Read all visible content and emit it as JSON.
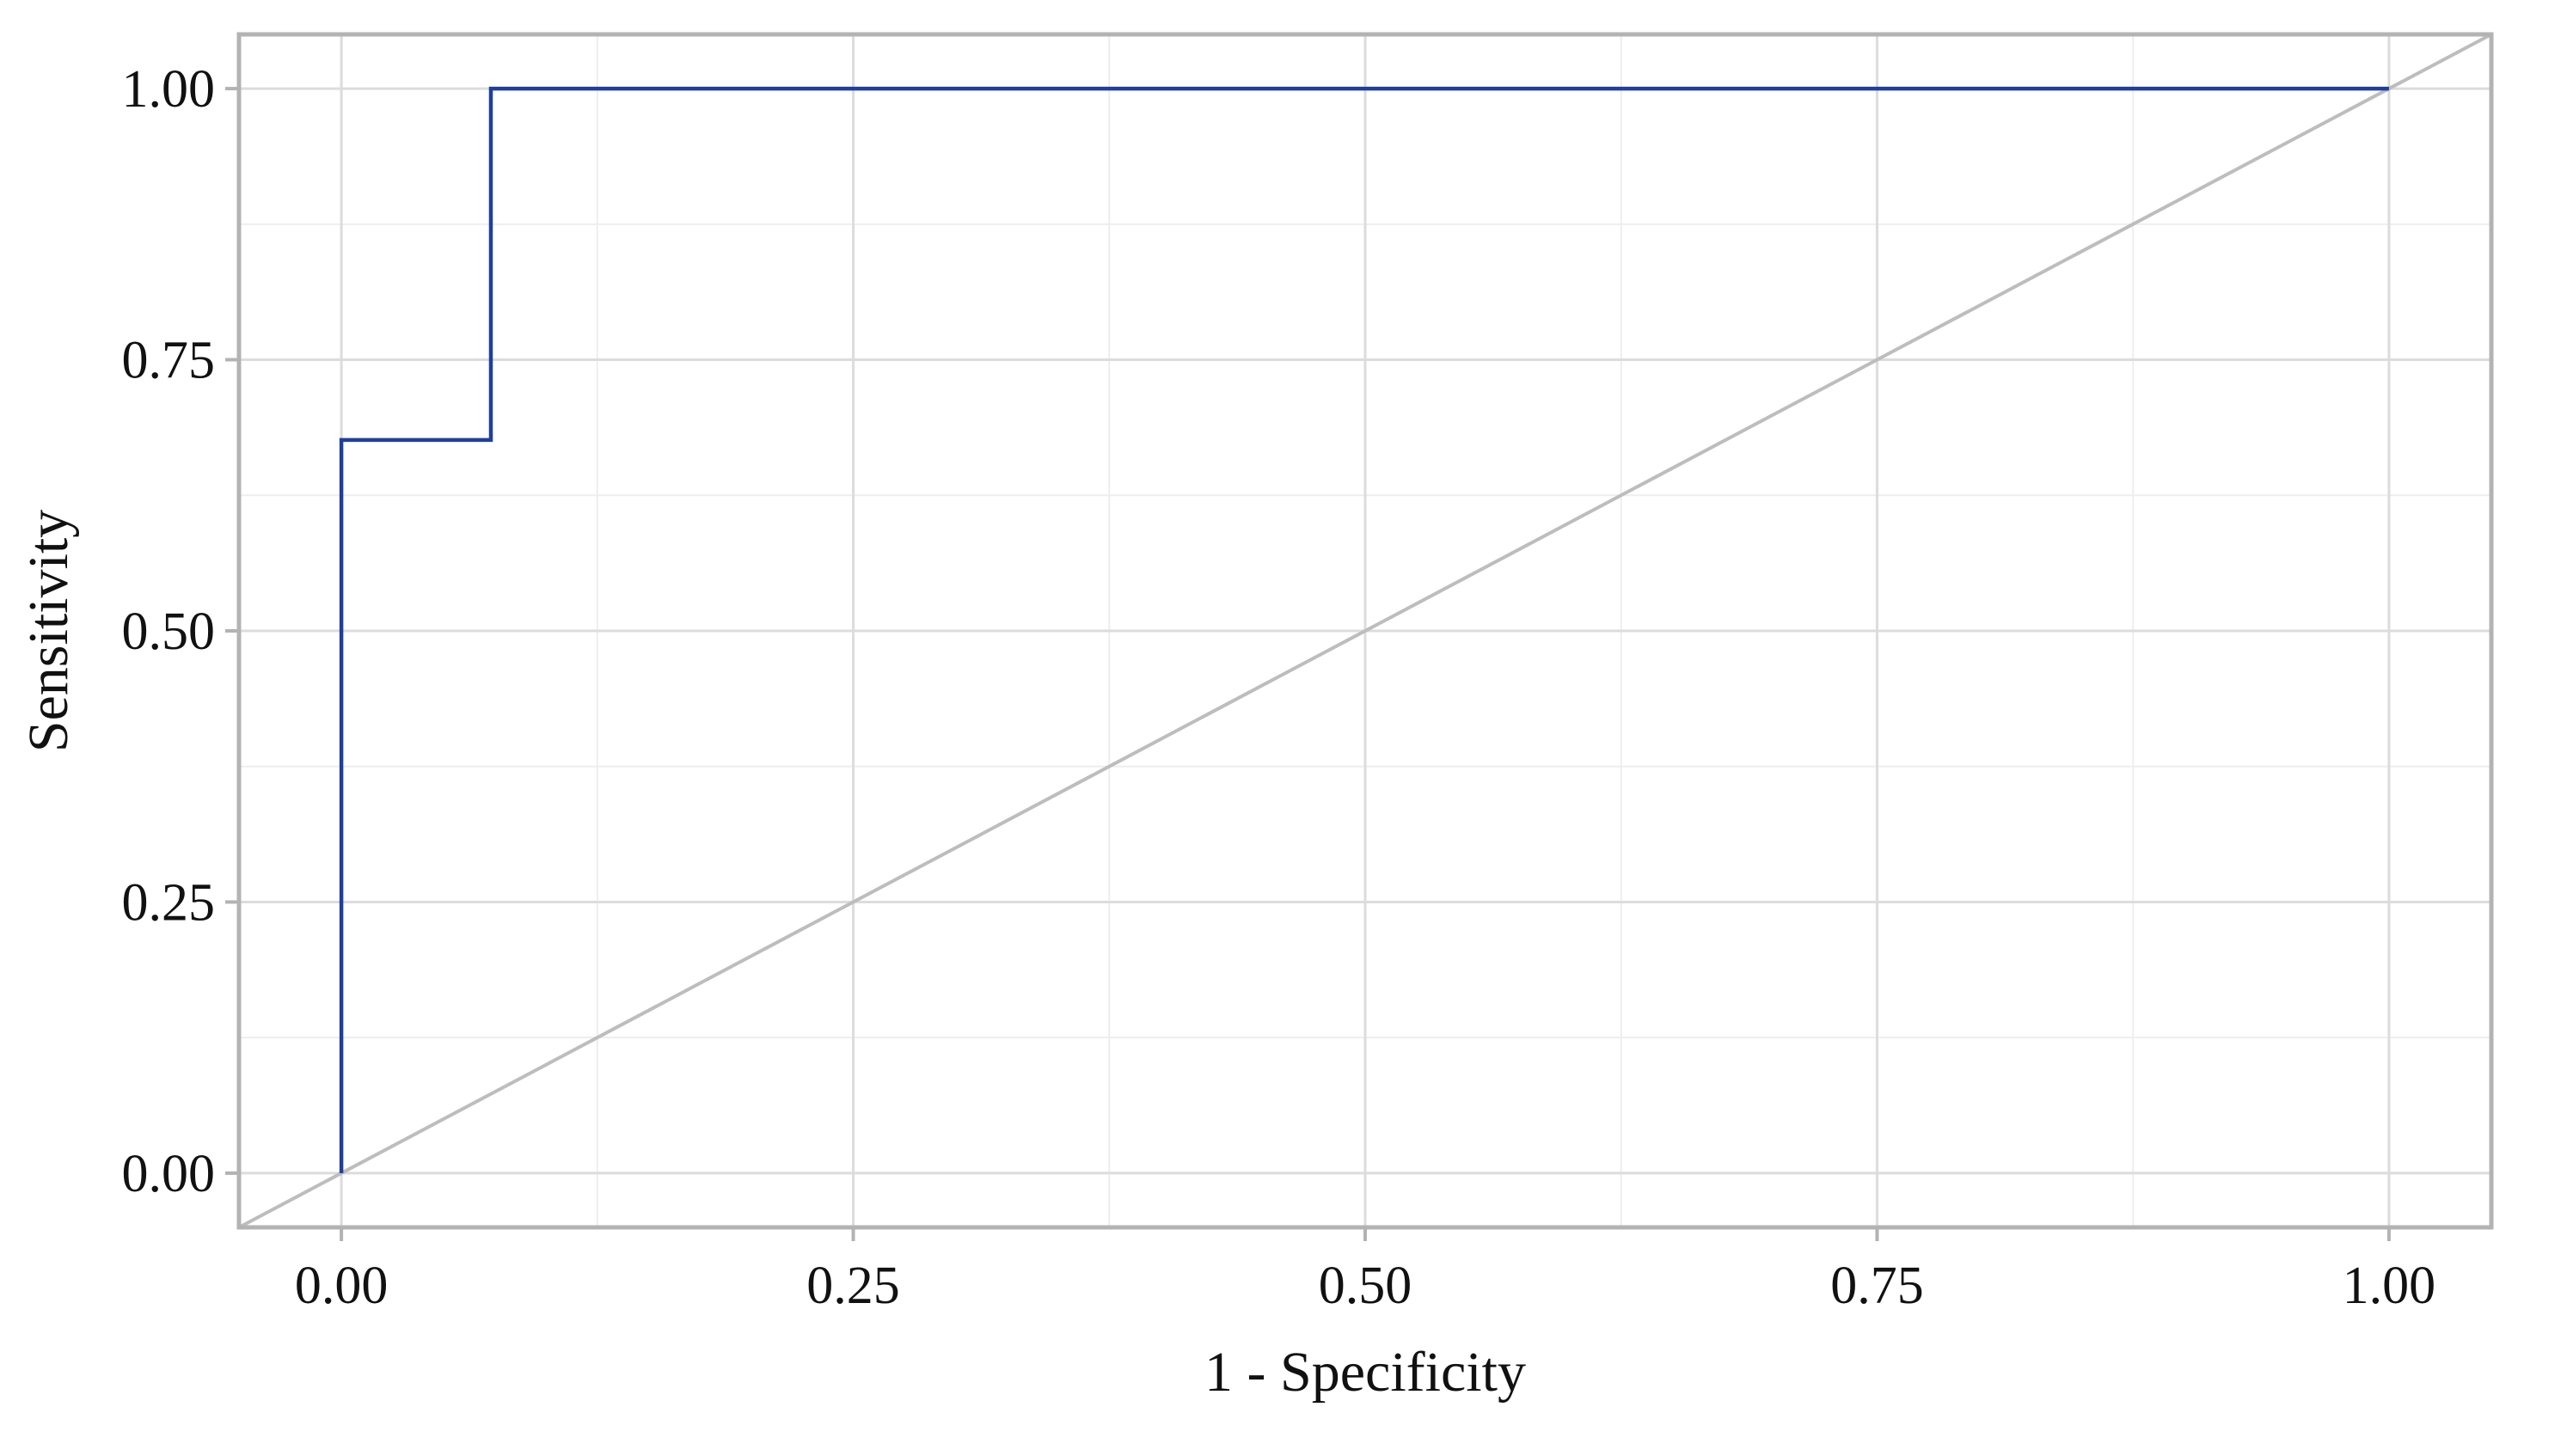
{
  "chart_data": {
    "type": "line",
    "title": "",
    "xlabel": "1 - Specificity",
    "ylabel": "Sensitivity",
    "xlim": [
      -0.05,
      1.05
    ],
    "ylim": [
      -0.05,
      1.05
    ],
    "grid": true,
    "legend": "none",
    "x_ticks": [
      0.0,
      0.25,
      0.5,
      0.75,
      1.0
    ],
    "y_ticks": [
      0.0,
      0.25,
      0.5,
      0.75,
      1.0
    ],
    "x_tick_labels": [
      "0.00",
      "0.25",
      "0.50",
      "0.75",
      "1.00"
    ],
    "y_tick_labels": [
      "0.00",
      "0.25",
      "0.50",
      "0.75",
      "1.00"
    ],
    "series": [
      {
        "color": "#1f3f9e",
        "style": "step",
        "x": [
          0.0,
          0.0,
          0.073,
          0.073,
          1.0
        ],
        "y": [
          0.0,
          0.676,
          0.676,
          1.0,
          1.0
        ]
      },
      {
        "color": "#bdbdbd",
        "style": "line",
        "x": [
          -0.05,
          1.05
        ],
        "y": [
          -0.05,
          1.05
        ]
      }
    ],
    "colors": {
      "grid_major": "#dcdcdc",
      "grid_minor": "#eeeeee",
      "panel_border": "#b3b3b3",
      "tick_mark": "#b3b3b3"
    }
  }
}
